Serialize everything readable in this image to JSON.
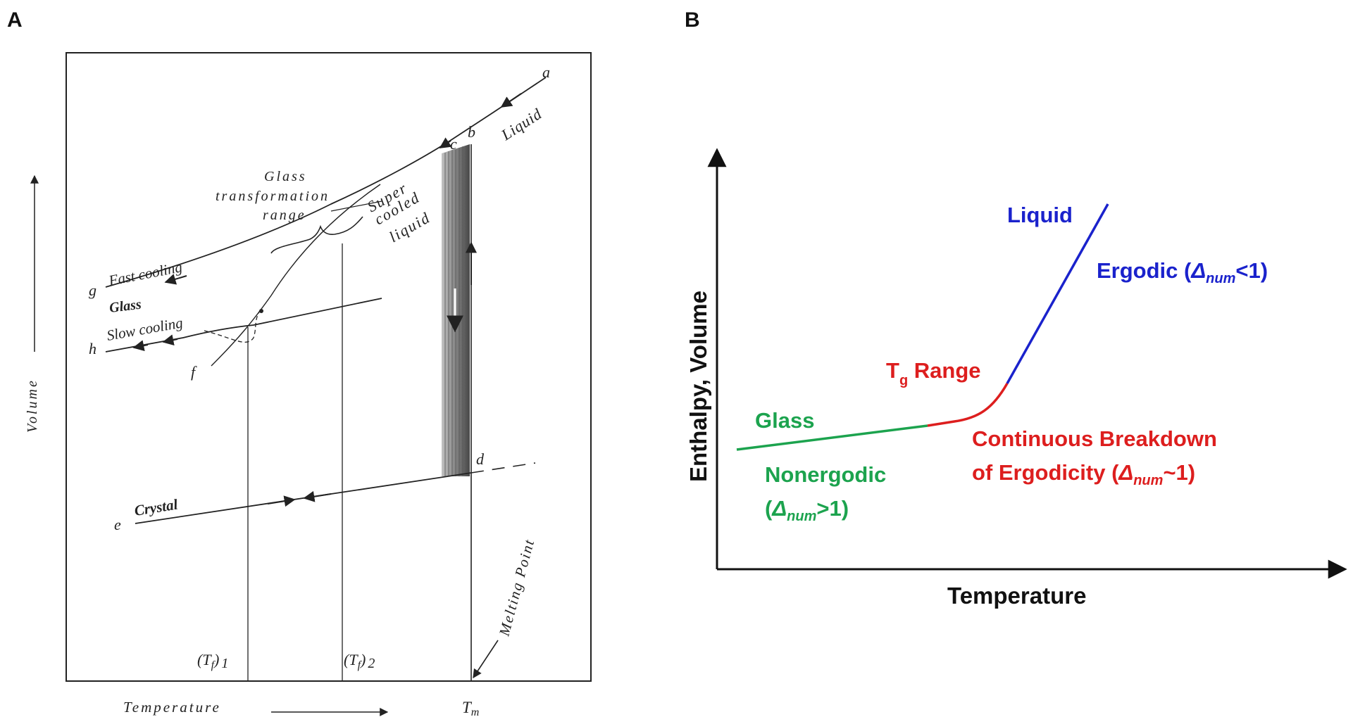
{
  "panel_a": {
    "panel_label": "A",
    "point_a": "a",
    "point_b": "b",
    "point_c": "c",
    "point_d": "d",
    "point_e": "e",
    "point_f": "f",
    "point_g": "g",
    "point_h": "h",
    "liquid_label": "Liquid",
    "supercooled_1": "Super",
    "supercooled_2": "cooled",
    "supercooled_3": "liquid",
    "glass_transform_1": "Glass",
    "glass_transform_2": "transformation",
    "glass_transform_3": "range",
    "fast_cooling_label": "Fast cooling",
    "glass_label": "Glass",
    "slow_cooling_label": "Slow cooling",
    "crystal_label": "Crystal",
    "melting_point_label": "Melting Point",
    "tf1_main": "(T",
    "tf1_sub": "f",
    "tf1_close": ")",
    "tf1_num": "1",
    "tf2_main": "(T",
    "tf2_sub": "f",
    "tf2_close": ")",
    "tf2_num": "2",
    "tm_main": "T",
    "tm_sub": "m",
    "y_axis_label": "Volume",
    "x_axis_label": "Temperature"
  },
  "panel_b": {
    "panel_label": "B",
    "y_axis_label": "Enthalpy, Volume",
    "x_axis_label": "Temperature",
    "liquid_label": "Liquid",
    "ergodic_text": "Ergodic (",
    "ergodic_delta": "Δ",
    "ergodic_sub": "num",
    "ergodic_tail": "<1)",
    "tg_main": "T",
    "tg_sub": "g",
    "tg_tail": " Range",
    "glass_label": "Glass",
    "cont_line1": "Continuous Breakdown",
    "cont_line2_text": "of Ergodicity (",
    "cont_delta": "Δ",
    "cont_sub": "num",
    "cont_tail": "~1)",
    "nonergodic_label": "Nonergodic",
    "nonergodic_open": "(",
    "nonergodic_delta": "Δ",
    "nonergodic_sub": "num",
    "nonergodic_tail": ">1)"
  },
  "colors": {
    "liquid_blue": "#1a22cc",
    "tg_red": "#dd1e1e",
    "glass_green": "#1ca34e",
    "ink": "#222222"
  }
}
